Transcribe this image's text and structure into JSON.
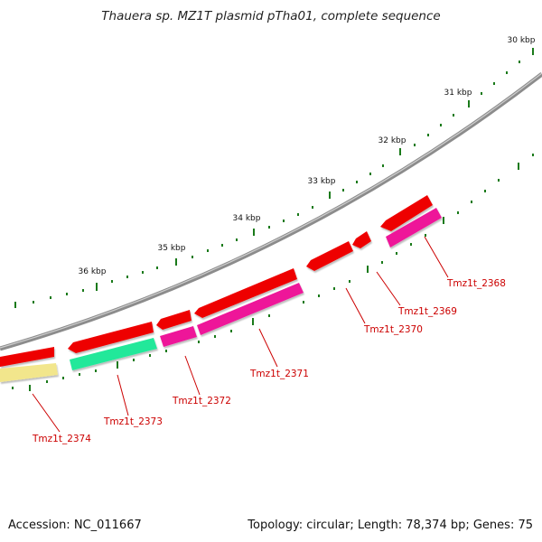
{
  "title": "Thauera sp. MZ1T plasmid pTha01, complete sequence",
  "accession": "Accession: NC_011667",
  "summary": "Topology: circular; Length: 78,374 bp; Genes: 75",
  "colors": {
    "backbone": "#8c8c8c",
    "tick": "#1a7a1a",
    "label": "#cc0000",
    "leader": "#cc0000",
    "red_feature": "#ee0000",
    "magenta_feature": "#ee1699",
    "cyan_feature": "#22e89a",
    "yellow_feature": "#f2e68c"
  },
  "scale_labels": [
    "30 kbp",
    "31 kbp",
    "32 kbp",
    "33 kbp",
    "34 kbp",
    "35 kbp",
    "36 kbp"
  ],
  "genes": [
    {
      "label": "Tmz1t_2368",
      "color": "magenta"
    },
    {
      "label": "Tmz1t_2369",
      "color": "red"
    },
    {
      "label": "Tmz1t_2370",
      "color": "red"
    },
    {
      "label": "Tmz1t_2371",
      "color": "magenta"
    },
    {
      "label": "Tmz1t_2372",
      "color": "magenta"
    },
    {
      "label": "Tmz1t_2373",
      "color": "cyan"
    },
    {
      "label": "Tmz1t_2374",
      "color": "yellow"
    }
  ]
}
